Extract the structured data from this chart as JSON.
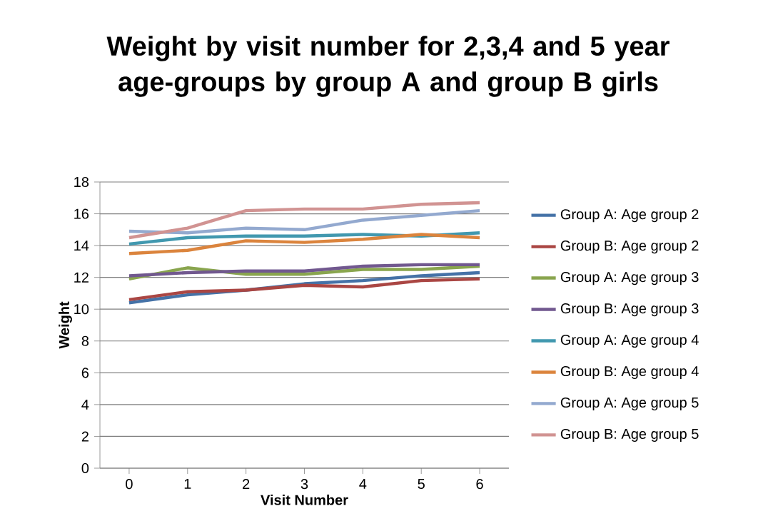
{
  "chart_data": {
    "type": "line",
    "title": "Weight by visit number for 2,3,4 and 5 year age-groups by group A and group B girls",
    "xlabel": "Visit Number",
    "ylabel": "Weight",
    "categories": [
      "0",
      "1",
      "2",
      "3",
      "4",
      "5",
      "6"
    ],
    "ylim": [
      0,
      18
    ],
    "yticks": [
      0,
      2,
      4,
      6,
      8,
      10,
      12,
      14,
      16,
      18
    ],
    "grid": "y",
    "legend": "right",
    "marker": "none",
    "line_style": "solid",
    "series": [
      {
        "name": "Group A: Age group 2",
        "color": "#4572a7",
        "values": [
          10.4,
          10.9,
          11.2,
          11.6,
          11.8,
          12.1,
          12.3
        ]
      },
      {
        "name": "Group B: Age group 2",
        "color": "#aa4643",
        "values": [
          10.6,
          11.1,
          11.2,
          11.5,
          11.4,
          11.8,
          11.9
        ]
      },
      {
        "name": "Group A: Age group 3",
        "color": "#89a54e",
        "values": [
          11.9,
          12.6,
          12.2,
          12.2,
          12.5,
          12.5,
          12.7
        ]
      },
      {
        "name": "Group B: Age group 3",
        "color": "#71588f",
        "values": [
          12.1,
          12.3,
          12.4,
          12.4,
          12.7,
          12.8,
          12.8
        ]
      },
      {
        "name": "Group A: Age group 4",
        "color": "#4198af",
        "values": [
          14.1,
          14.5,
          14.6,
          14.6,
          14.7,
          14.6,
          14.8
        ]
      },
      {
        "name": "Group B: Age group 4",
        "color": "#db843d",
        "values": [
          13.5,
          13.7,
          14.3,
          14.2,
          14.4,
          14.7,
          14.5
        ]
      },
      {
        "name": "Group A: Age group 5",
        "color": "#93a9cf",
        "values": [
          14.9,
          14.8,
          15.1,
          15.0,
          15.6,
          15.9,
          16.2
        ]
      },
      {
        "name": "Group B: Age group 5",
        "color": "#d19392",
        "values": [
          14.5,
          15.1,
          16.2,
          16.3,
          16.3,
          16.6,
          16.7
        ]
      }
    ]
  }
}
